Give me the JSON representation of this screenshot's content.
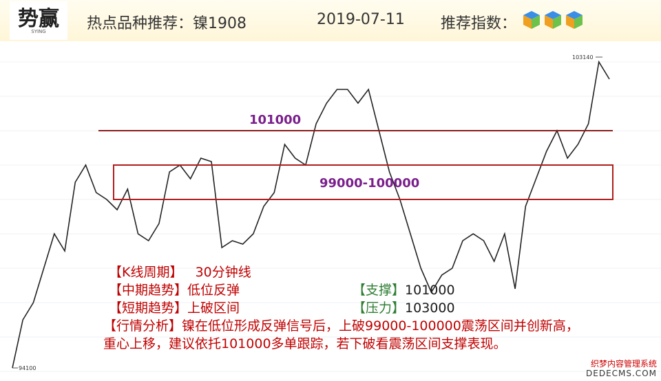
{
  "header": {
    "logo": "势赢",
    "logo_sub": "SYING",
    "title": "热点品种推荐：镍1908",
    "date": "2019-07-11",
    "rating_label": "推荐指数："
  },
  "chart_data": {
    "type": "line",
    "color": "#222222",
    "values": [
      94100,
      95500,
      96000,
      97000,
      98000,
      97500,
      99500,
      100000,
      99200,
      99000,
      98700,
      99300,
      98000,
      97800,
      98300,
      99800,
      100000,
      99600,
      100200,
      100100,
      97600,
      97800,
      97700,
      98000,
      98800,
      99200,
      100600,
      100200,
      100000,
      101200,
      101800,
      102200,
      102200,
      101800,
      102200,
      101000,
      99800,
      99000,
      98000,
      97000,
      96300,
      96800,
      97000,
      97800,
      98000,
      97800,
      97200,
      98000,
      96400,
      98800,
      99600,
      100400,
      101000,
      100200,
      100600,
      101200,
      103000,
      102500
    ],
    "ylim": [
      93720,
      103600
    ],
    "high": 103140,
    "low": 94100,
    "line_level": 101000,
    "band": {
      "label": "99000-100000",
      "range": [
        99000,
        100000
      ]
    }
  },
  "analysis": {
    "period": [
      "【K线周期】",
      "30分钟线"
    ],
    "mid_trend": [
      "【中期趋势】",
      "低位反弹"
    ],
    "support": [
      "【支撑】",
      "101000"
    ],
    "short_trend": [
      "【短期趋势】",
      "上破区间"
    ],
    "pressure": [
      "【压力】",
      "103000"
    ],
    "summary_label": "【行情分析】",
    "summary": "镍在低位形成反弹信号后，上破99000-100000震荡区间并创新高，重心上移，建议依托101000多单跟踪，若下破看震荡区间支撑表现。"
  },
  "watermark": [
    "织梦内容管理系统",
    "DEDECMS.COM"
  ]
}
